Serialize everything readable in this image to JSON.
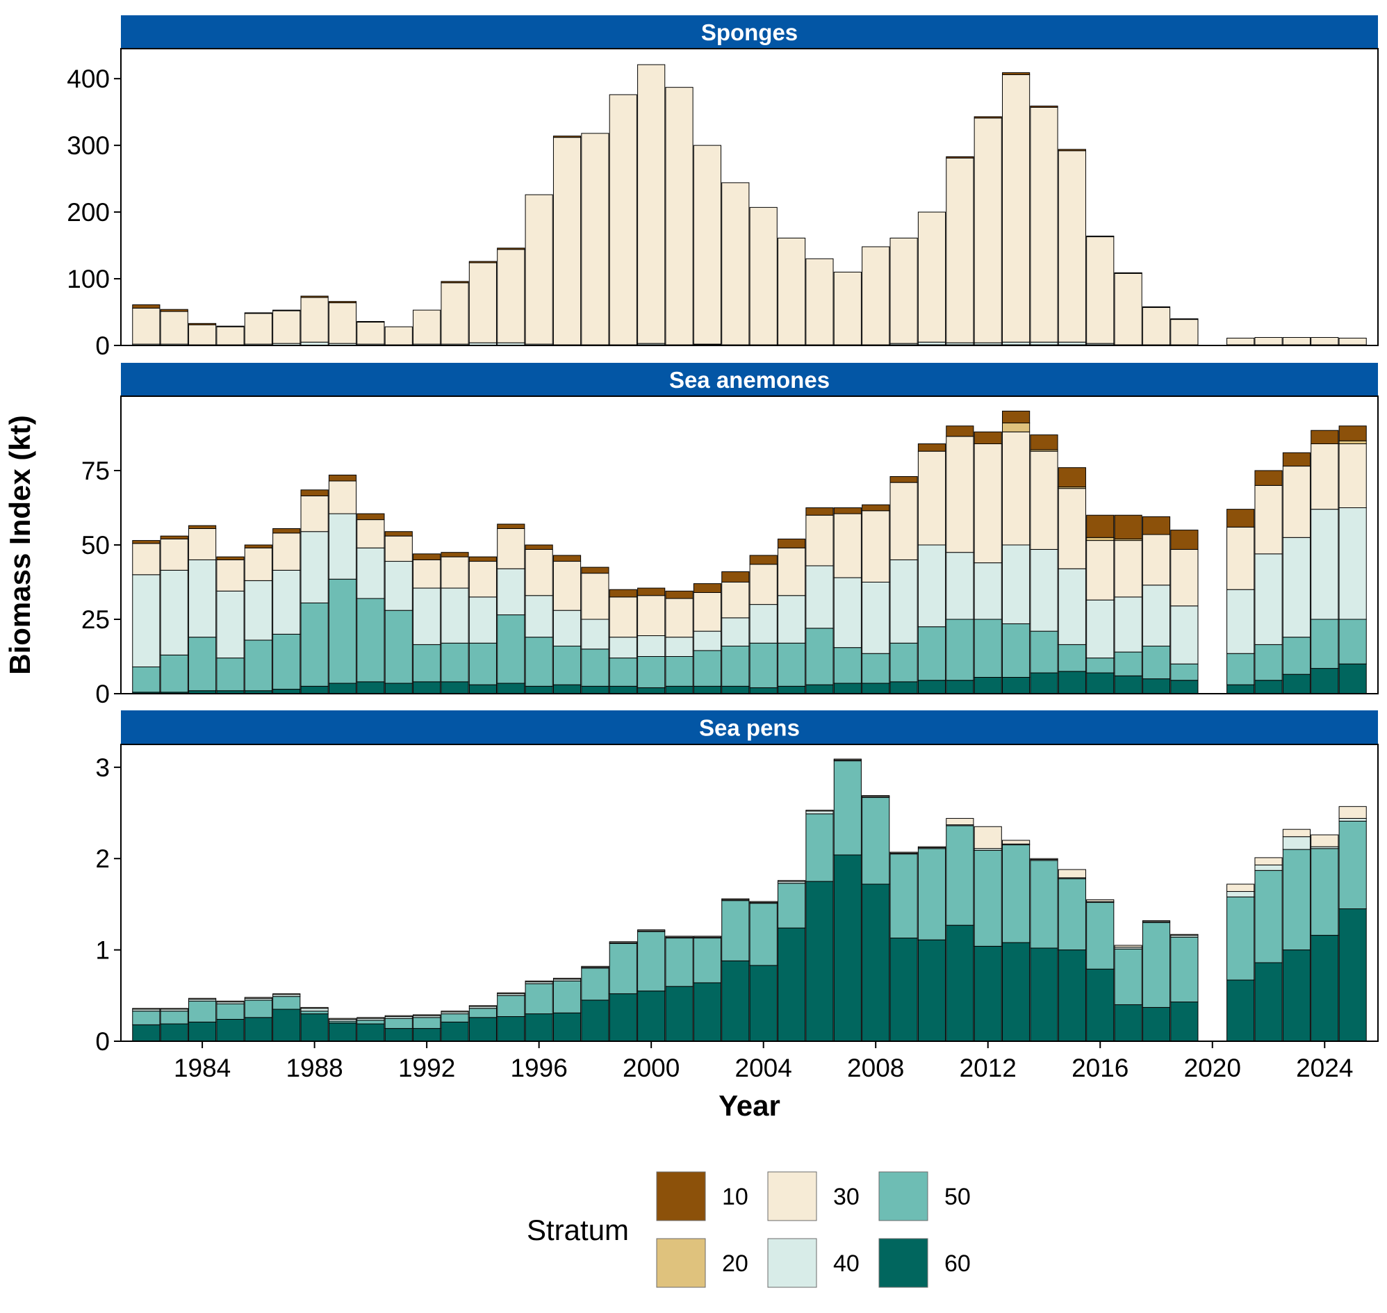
{
  "chart_data": {
    "type": "bar",
    "stacked": true,
    "faceted": true,
    "xlabel": "Year",
    "ylabel": "Biomass Index (kt)",
    "x_ticks": [
      1984,
      1988,
      1992,
      1996,
      2000,
      2004,
      2008,
      2012,
      2016,
      2020,
      2024
    ],
    "years": [
      1982,
      1983,
      1984,
      1985,
      1986,
      1987,
      1988,
      1989,
      1990,
      1991,
      1992,
      1993,
      1994,
      1995,
      1996,
      1997,
      1998,
      1999,
      2000,
      2001,
      2002,
      2003,
      2004,
      2005,
      2006,
      2007,
      2008,
      2009,
      2010,
      2011,
      2012,
      2013,
      2014,
      2015,
      2016,
      2017,
      2018,
      2019,
      2020,
      2021,
      2022,
      2023,
      2024,
      2025
    ],
    "legend": {
      "title": "Stratum",
      "position": "bottom",
      "entries": [
        {
          "name": "10",
          "color": "#8C510A"
        },
        {
          "name": "20",
          "color": "#DFC27D"
        },
        {
          "name": "30",
          "color": "#F6EBD6"
        },
        {
          "name": "40",
          "color": "#D8ECE8"
        },
        {
          "name": "50",
          "color": "#6EBDB4"
        },
        {
          "name": "60",
          "color": "#01665E"
        }
      ]
    },
    "panels": [
      {
        "title": "Sponges",
        "ylim": [
          0,
          445
        ],
        "y_ticks": [
          0,
          100,
          200,
          300,
          400
        ],
        "series": [
          {
            "name": "10",
            "values": [
              5,
              3,
              2,
              1,
              1,
              1,
              2,
              2,
              1,
              0,
              0,
              2,
              2,
              2,
              0,
              2,
              0,
              0,
              0,
              0,
              0,
              0,
              0,
              0,
              0,
              0,
              0,
              0,
              0,
              2,
              2,
              3,
              2,
              2,
              1,
              1,
              1,
              1,
              null,
              0,
              0,
              0,
              0,
              0
            ]
          },
          {
            "name": "20",
            "values": [
              0,
              0,
              0,
              0,
              0,
              0,
              0,
              0,
              0,
              0,
              0,
              0,
              0,
              0,
              0,
              0,
              0,
              0,
              0,
              0,
              0,
              0,
              0,
              0,
              0,
              0,
              0,
              0,
              0,
              0,
              0,
              0,
              0,
              0,
              0,
              0,
              0,
              0,
              null,
              0,
              0,
              0,
              0,
              0
            ]
          },
          {
            "name": "30",
            "values": [
              54,
              49,
              30,
              27,
              46,
              49,
              67,
              61,
              33,
              27,
              51,
              92,
              120,
              140,
              224,
              311,
              317,
              375,
              418,
              386,
              298,
              243,
              206,
              160,
              129,
              109,
              147,
              158,
              195,
              277,
              337,
              401,
              352,
              287,
              160,
              107,
              56,
              38,
              null,
              10,
              11,
              11,
              11,
              10
            ]
          },
          {
            "name": "40",
            "values": [
              2,
              2,
              1,
              1,
              2,
              3,
              5,
              3,
              2,
              1,
              2,
              2,
              4,
              4,
              2,
              1,
              1,
              1,
              2,
              1,
              1,
              1,
              1,
              1,
              1,
              1,
              1,
              2,
              4,
              3,
              3,
              4,
              4,
              4,
              2,
              1,
              1,
              1,
              null,
              1,
              1,
              1,
              1,
              1
            ]
          },
          {
            "name": "50",
            "values": [
              0,
              0,
              0,
              0,
              0,
              0,
              0,
              0,
              0,
              0,
              0,
              0,
              0,
              0,
              0,
              0,
              0,
              0,
              1,
              0,
              1,
              0,
              0,
              0,
              0,
              0,
              0,
              1,
              1,
              1,
              1,
              1,
              1,
              1,
              1,
              0,
              0,
              0,
              null,
              0,
              0,
              0,
              0,
              0
            ]
          },
          {
            "name": "60",
            "values": [
              0,
              0,
              0,
              0,
              0,
              0,
              0,
              0,
              0,
              0,
              0,
              0,
              0,
              0,
              0,
              0,
              0,
              0,
              0,
              0,
              0,
              0,
              0,
              0,
              0,
              0,
              0,
              0,
              0,
              0,
              0,
              0,
              0,
              0,
              0,
              0,
              0,
              0,
              null,
              0,
              0,
              0,
              0,
              0
            ]
          }
        ]
      },
      {
        "title": "Sea anemones",
        "ylim": [
          0,
          100
        ],
        "y_ticks": [
          0,
          25,
          50,
          75
        ],
        "series": [
          {
            "name": "10",
            "values": [
              1,
              1,
              1,
              1,
              1,
              1.5,
              2,
              2,
              2,
              1.5,
              2,
              1.5,
              1.5,
              1.5,
              1.5,
              2,
              2,
              2.5,
              2.5,
              2.5,
              3,
              3.5,
              3,
              3,
              2.5,
              2,
              2,
              2,
              2.5,
              3.5,
              4,
              4,
              5,
              6.5,
              7.5,
              8,
              6,
              6.5,
              null,
              6,
              5,
              4.5,
              4.5,
              5
            ]
          },
          {
            "name": "20",
            "values": [
              0,
              0,
              0,
              0,
              0,
              0,
              0,
              0,
              0,
              0,
              0,
              0,
              0,
              0,
              0,
              0,
              0,
              0,
              0,
              0,
              0,
              0,
              0,
              0,
              0,
              0,
              0,
              0,
              0,
              0,
              0,
              3,
              0.5,
              0.5,
              1,
              0.5,
              0,
              0,
              null,
              0,
              0,
              0,
              0,
              1
            ]
          },
          {
            "name": "30",
            "values": [
              10.5,
              10.5,
              10.5,
              10.5,
              11,
              12.5,
              12,
              11,
              9.5,
              8.5,
              9.5,
              10.5,
              12,
              13.5,
              15.5,
              16.5,
              15.5,
              13.5,
              13.5,
              13,
              13,
              12,
              13.5,
              16,
              17,
              21.5,
              24,
              26,
              31.5,
              39,
              40,
              38,
              33,
              27,
              20,
              19,
              17,
              19,
              null,
              21,
              23,
              24,
              22,
              21.5
            ]
          },
          {
            "name": "40",
            "values": [
              31,
              28.5,
              26,
              22.5,
              20,
              21.5,
              24,
              22,
              17,
              16.5,
              19,
              18.5,
              15.5,
              15.5,
              14,
              12,
              10,
              7,
              7,
              6.5,
              6.5,
              9.5,
              13,
              16,
              21,
              23.5,
              24,
              28,
              27.5,
              22.5,
              19,
              26.5,
              27.5,
              25.5,
              19.5,
              18.5,
              20.5,
              19.5,
              null,
              21.5,
              30.5,
              33.5,
              37,
              37.5
            ]
          },
          {
            "name": "50",
            "values": [
              8.5,
              12.5,
              18,
              11,
              17,
              18.5,
              28,
              35,
              28,
              24.5,
              12.5,
              13,
              14,
              23,
              16.5,
              13,
              12.5,
              9.5,
              10.5,
              10,
              12,
              13.5,
              15,
              14.5,
              19,
              12,
              10,
              13,
              18,
              20.5,
              19.5,
              18,
              14,
              9,
              5,
              8,
              11,
              5.5,
              null,
              10.5,
              12,
              12.5,
              16.5,
              15
            ]
          },
          {
            "name": "60",
            "values": [
              0.5,
              0.5,
              1,
              1,
              1,
              1.5,
              2.5,
              3.5,
              4,
              3.5,
              4,
              4,
              3,
              3.5,
              2.5,
              3,
              2.5,
              2.5,
              2,
              2.5,
              2.5,
              2.5,
              2,
              2.5,
              3,
              3.5,
              3.5,
              4,
              4.5,
              4.5,
              5.5,
              5.5,
              7,
              7.5,
              7,
              6,
              5,
              4.5,
              null,
              3,
              4.5,
              6.5,
              8.5,
              10
            ]
          }
        ]
      },
      {
        "title": "Sea pens",
        "ylim": [
          0,
          3.25
        ],
        "y_ticks": [
          0,
          1,
          2,
          3
        ],
        "series": [
          {
            "name": "10",
            "values": [
              0,
              0,
              0,
              0,
              0,
              0,
              0,
              0,
              0,
              0,
              0,
              0,
              0,
              0,
              0,
              0,
              0,
              0,
              0,
              0,
              0,
              0,
              0,
              0,
              0,
              0,
              0,
              0,
              0,
              0,
              0,
              0,
              0,
              0,
              0,
              0,
              0,
              0,
              null,
              0,
              0,
              0,
              0,
              0
            ]
          },
          {
            "name": "20",
            "values": [
              0,
              0,
              0,
              0,
              0,
              0,
              0,
              0,
              0,
              0,
              0,
              0,
              0,
              0,
              0,
              0,
              0,
              0,
              0,
              0,
              0,
              0,
              0,
              0,
              0,
              0,
              0,
              0,
              0,
              0,
              0,
              0,
              0,
              0,
              0,
              0,
              0,
              0,
              null,
              0,
              0,
              0,
              0,
              0
            ]
          },
          {
            "name": "30",
            "values": [
              0.01,
              0.01,
              0.01,
              0.01,
              0.01,
              0.01,
              0.01,
              0.01,
              0.01,
              0.01,
              0.01,
              0.01,
              0.01,
              0.01,
              0.01,
              0.01,
              0.01,
              0.01,
              0.01,
              0.01,
              0.01,
              0.01,
              0.01,
              0.01,
              0.01,
              0.01,
              0.01,
              0.01,
              0.01,
              0.07,
              0.24,
              0.04,
              0.01,
              0.09,
              0.02,
              0.02,
              0.01,
              0.01,
              null,
              0.08,
              0.08,
              0.08,
              0.13,
              0.13
            ]
          },
          {
            "name": "40",
            "values": [
              0.02,
              0.02,
              0.02,
              0.02,
              0.02,
              0.02,
              0.03,
              0.02,
              0.02,
              0.02,
              0.02,
              0.02,
              0.02,
              0.02,
              0.02,
              0.02,
              0.01,
              0.01,
              0.01,
              0.01,
              0.01,
              0.01,
              0.01,
              0.02,
              0.03,
              0.01,
              0.01,
              0.01,
              0.01,
              0.01,
              0.02,
              0.01,
              0.01,
              0.01,
              0.01,
              0.02,
              0.01,
              0.02,
              null,
              0.06,
              0.06,
              0.14,
              0.02,
              0.03
            ]
          },
          {
            "name": "50",
            "values": [
              0.15,
              0.14,
              0.23,
              0.17,
              0.19,
              0.14,
              0.03,
              0.02,
              0.04,
              0.11,
              0.12,
              0.09,
              0.1,
              0.23,
              0.33,
              0.35,
              0.35,
              0.55,
              0.65,
              0.53,
              0.49,
              0.66,
              0.68,
              0.49,
              0.74,
              1.03,
              0.95,
              0.92,
              1.0,
              1.09,
              1.05,
              1.07,
              0.96,
              0.78,
              0.73,
              0.61,
              0.93,
              0.71,
              null,
              0.91,
              1.01,
              1.1,
              0.95,
              0.96
            ]
          },
          {
            "name": "60",
            "values": [
              0.18,
              0.19,
              0.21,
              0.24,
              0.26,
              0.35,
              0.3,
              0.2,
              0.19,
              0.14,
              0.14,
              0.21,
              0.26,
              0.27,
              0.3,
              0.31,
              0.45,
              0.52,
              0.55,
              0.6,
              0.64,
              0.88,
              0.83,
              1.24,
              1.75,
              2.04,
              1.72,
              1.13,
              1.11,
              1.27,
              1.04,
              1.08,
              1.02,
              1.0,
              0.79,
              0.4,
              0.37,
              0.43,
              null,
              0.67,
              0.86,
              1.0,
              1.16,
              1.45
            ]
          }
        ]
      }
    ]
  }
}
